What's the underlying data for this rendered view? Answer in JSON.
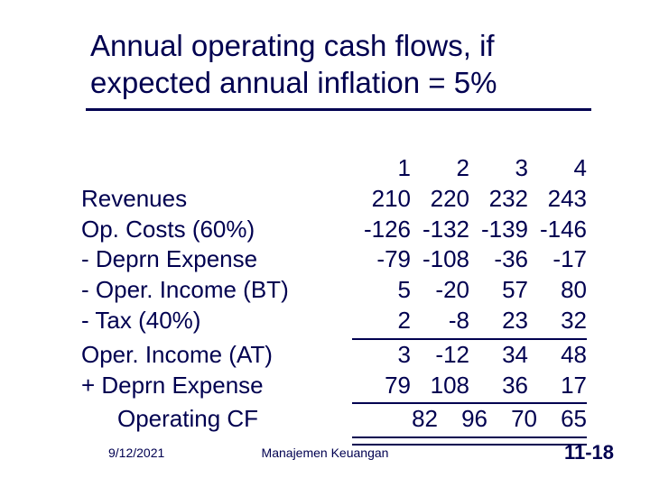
{
  "title_line1": "Annual operating cash flows, if",
  "title_line2": "expected annual inflation = 5%",
  "header": {
    "c1": "1",
    "c2": "2",
    "c3": "3",
    "c4": "4"
  },
  "rows": {
    "revenues": {
      "label": "Revenues",
      "c1": "210",
      "c2": "220",
      "c3": "232",
      "c4": "243"
    },
    "opcosts": {
      "label": "Op. Costs (60%)",
      "c1": "-126",
      "c2": "-132",
      "c3": "-139",
      "c4": "-146"
    },
    "deprn": {
      "label": "- Deprn Expense",
      "c1": "-79",
      "c2": "-108",
      "c3": "-36",
      "c4": "-17"
    },
    "opinc_bt": {
      "label": "- Oper. Income (BT)",
      "c1": "5",
      "c2": "-20",
      "c3": "57",
      "c4": "80"
    },
    "tax": {
      "label": "- Tax (40%)",
      "c1": "2",
      "c2": "-8",
      "c3": "23",
      "c4": "32"
    },
    "opinc_at": {
      "label": "Oper. Income (AT)",
      "c1": "3",
      "c2": "-12",
      "c3": "34",
      "c4": "48"
    },
    "add_deprn": {
      "label": "+ Deprn Expense",
      "c1": "79",
      "c2": "108",
      "c3": "36",
      "c4": "17"
    },
    "ocf": {
      "label": "Operating CF",
      "c1": "82",
      "c2": "96",
      "c3": "70",
      "c4": "65"
    }
  },
  "footer": {
    "date": "9/12/2021",
    "center": "Manajemen Keuangan",
    "page": "11-18"
  },
  "colors": {
    "text": "#000050",
    "background": "#ffffff"
  },
  "fontsize": {
    "title": 33,
    "body": 26,
    "footer": 14,
    "page": 22
  }
}
